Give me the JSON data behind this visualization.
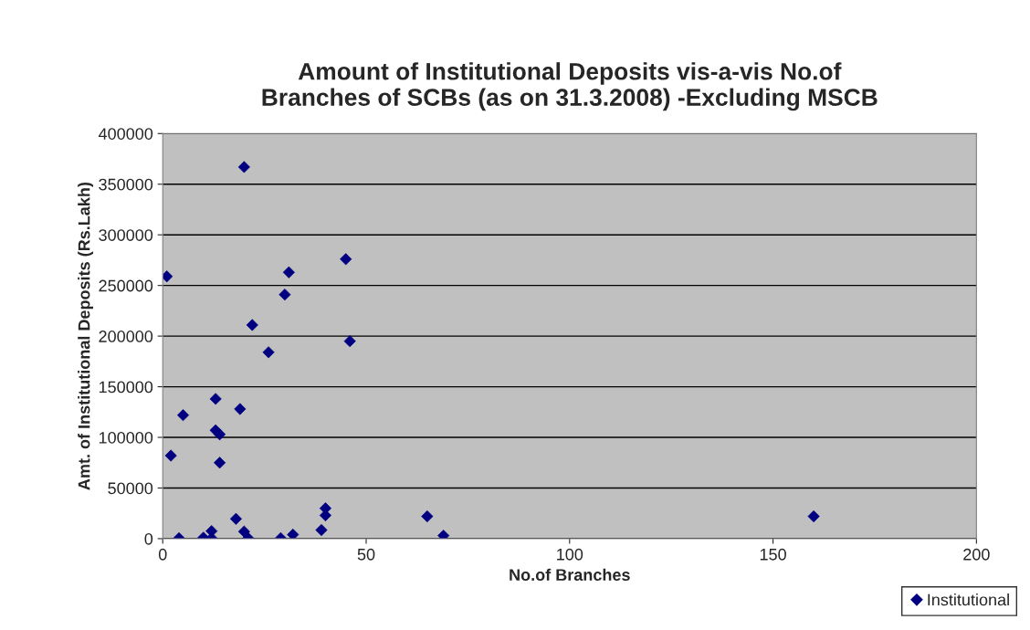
{
  "chart_data": {
    "type": "scatter",
    "title": "Amount of Institutional Deposits vis-a-vis No.of\nBranches of SCBs (as on 31.3.2008) -Excluding MSCB",
    "xlabel": "No.of Branches",
    "ylabel": "Amt. of Institutional Deposits (Rs.Lakh)",
    "series": [
      {
        "name": "Institutional",
        "color": "#000080",
        "x": [
          1,
          2,
          5,
          13,
          19,
          13,
          14,
          14,
          4,
          10,
          12,
          12,
          18,
          20,
          21,
          29,
          32,
          39,
          40,
          40,
          65,
          69,
          160,
          20,
          31,
          45,
          30,
          22,
          26,
          46
        ],
        "values": [
          259000,
          82000,
          122000,
          138000,
          128000,
          107000,
          103000,
          75000,
          500,
          1000,
          7500,
          500,
          19500,
          7000,
          500,
          500,
          4000,
          8500,
          30000,
          23000,
          22000,
          3000,
          22000,
          367000,
          263000,
          276000,
          241000,
          211000,
          184000,
          195000
        ]
      }
    ],
    "xlim": [
      0,
      200
    ],
    "xticks": [
      0,
      50,
      100,
      150,
      200
    ],
    "ylim": [
      0,
      400000
    ],
    "yticks": [
      0,
      50000,
      100000,
      150000,
      200000,
      250000,
      300000,
      350000,
      400000
    ],
    "grid": "y",
    "legend": "bottom right",
    "marker": "diamond"
  }
}
